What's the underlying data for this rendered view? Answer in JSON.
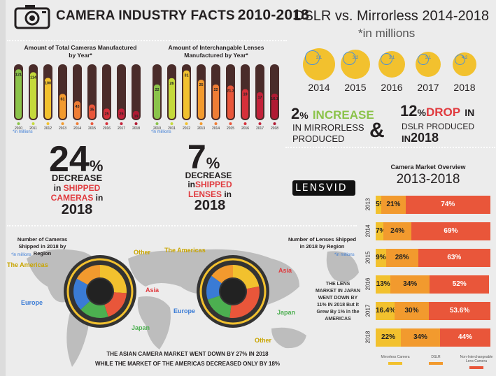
{
  "header": {
    "title": "CAMERA INDUSTRY FACTS",
    "years": "2010-2018"
  },
  "dslr_vs_mirrorless": {
    "title": "DSLR vs. Mirrorless 2014-2018",
    "subtitle": "*in millions",
    "years": [
      "2014",
      "2015",
      "2016",
      "2017",
      "2018"
    ],
    "circle_values": [
      "3.1",
      "3.2",
      "3.1",
      "3.1",
      "4.2"
    ]
  },
  "cameras_chart": {
    "title": "Amount of Total Cameras Manufactured by Year*",
    "note": "*in millions",
    "colors": [
      "#8bc34a",
      "#c5d93b",
      "#f2c12e",
      "#f29a2e",
      "#ef7d35",
      "#e9563a",
      "#d6303a",
      "#c3223a",
      "#b01a33"
    ]
  },
  "lenses_chart": {
    "title": "Amount of Interchangable Lenses Manufactured by Year*",
    "note": "*in millions",
    "colors": [
      "#8bc34a",
      "#c5d93b",
      "#f2c12e",
      "#f29a2e",
      "#ef7d35",
      "#e9563a",
      "#d6303a",
      "#c3223a",
      "#b01a33"
    ]
  },
  "chart_data": [
    {
      "type": "bar",
      "title": "Amount of Total Cameras Manufactured by Year*",
      "categories": [
        "2010",
        "2011",
        "2012",
        "2013",
        "2014",
        "2015",
        "2016",
        "2017",
        "2018"
      ],
      "values": [
        121,
        114,
        100,
        61,
        43,
        35,
        25,
        25,
        19
      ]
    },
    {
      "type": "bar",
      "title": "Amount of Interchangable Lenses Manufactured by Year*",
      "categories": [
        "2010",
        "2011",
        "2012",
        "2013",
        "2014",
        "2015",
        "2016",
        "2017",
        "2018"
      ],
      "values": [
        22,
        26,
        31,
        25,
        22,
        21.3,
        19,
        17,
        16.1
      ]
    },
    {
      "type": "bar",
      "title": "Camera Market Overview 2013-2018",
      "categories": [
        "2013",
        "2014",
        "2015",
        "2016",
        "2017",
        "2018"
      ],
      "series": [
        {
          "name": "Mirrorless Camera",
          "values": [
            5,
            7,
            9,
            13,
            16.4,
            22
          ]
        },
        {
          "name": "DSLR",
          "values": [
            21,
            24,
            28,
            34,
            30,
            34
          ]
        },
        {
          "name": "Non-Interchangeable Lens Camera",
          "values": [
            74,
            69,
            63,
            52,
            53.6,
            44
          ]
        }
      ]
    }
  ],
  "stat_cameras": {
    "pct": "24",
    "sym": "%",
    "l1": "DECREASE",
    "l2a": "in",
    "l2b": "SHIPPED",
    "l3a": "CAMERAS",
    "l3b": "in",
    "year": "2018"
  },
  "stat_lenses": {
    "pct": "7",
    "sym": "%",
    "l1": "DECREASE",
    "l2a": "in",
    "l2b": "SHIPPED",
    "l3a": "LENSES",
    "l3b": "in",
    "year": "2018"
  },
  "stat_mirrorless": {
    "pct": "2",
    "sym": "%",
    "word": "INCREASE",
    "l2": "IN MIRRORLESS",
    "l3": "PRODUCED"
  },
  "stat_dslr": {
    "pct": "12",
    "sym": "%",
    "word": "DROP",
    "word2": "IN",
    "l2": "DSLR PRODUCED",
    "l3": "IN",
    "year": "2018"
  },
  "amp": "&",
  "brand": "LENSVID",
  "overview": {
    "title1": "Camera Market Overview",
    "title2": "2013-2018",
    "labels": [
      "5%",
      "7%",
      "9%",
      "13%",
      "16.4%",
      "22%"
    ],
    "dslr_labels": [
      "21%",
      "24%",
      "28%",
      "34%",
      "30%",
      "34%"
    ],
    "non_labels": [
      "74%",
      "69%",
      "63%",
      "52%",
      "53.6%",
      "44%"
    ],
    "legend": [
      "Mirrorless Camera",
      "DSLR",
      "Non-Interchangeable Lens Camera"
    ],
    "colors": [
      "#f2c12e",
      "#f29a2e",
      "#e9563a"
    ]
  },
  "map_section": {
    "cam_title": "Number of Cameras Shipped in 2018 by Region",
    "cam_note": "*in millions",
    "lens_title": "Number of Lenses Shipped in 2018 by Region",
    "lens_note": "*in millions",
    "regions": {
      "other": "Other",
      "americas": "The Americas",
      "asia": "Asia",
      "europe": "Europe",
      "japan": "Japan"
    },
    "japan_note": "THE LENS MARKET IN JAPAN WENT DOWN BY 11% IN 2018 But it Grew By 1% in the AMERICAS",
    "bottom1": "THE ASIAN CAMERA MARKET WENT DOWN BY 27% IN 2018",
    "bottom2": "WHILE THE MARKET OF THE AMERICAS DECREASED ONLY BY 18%"
  }
}
